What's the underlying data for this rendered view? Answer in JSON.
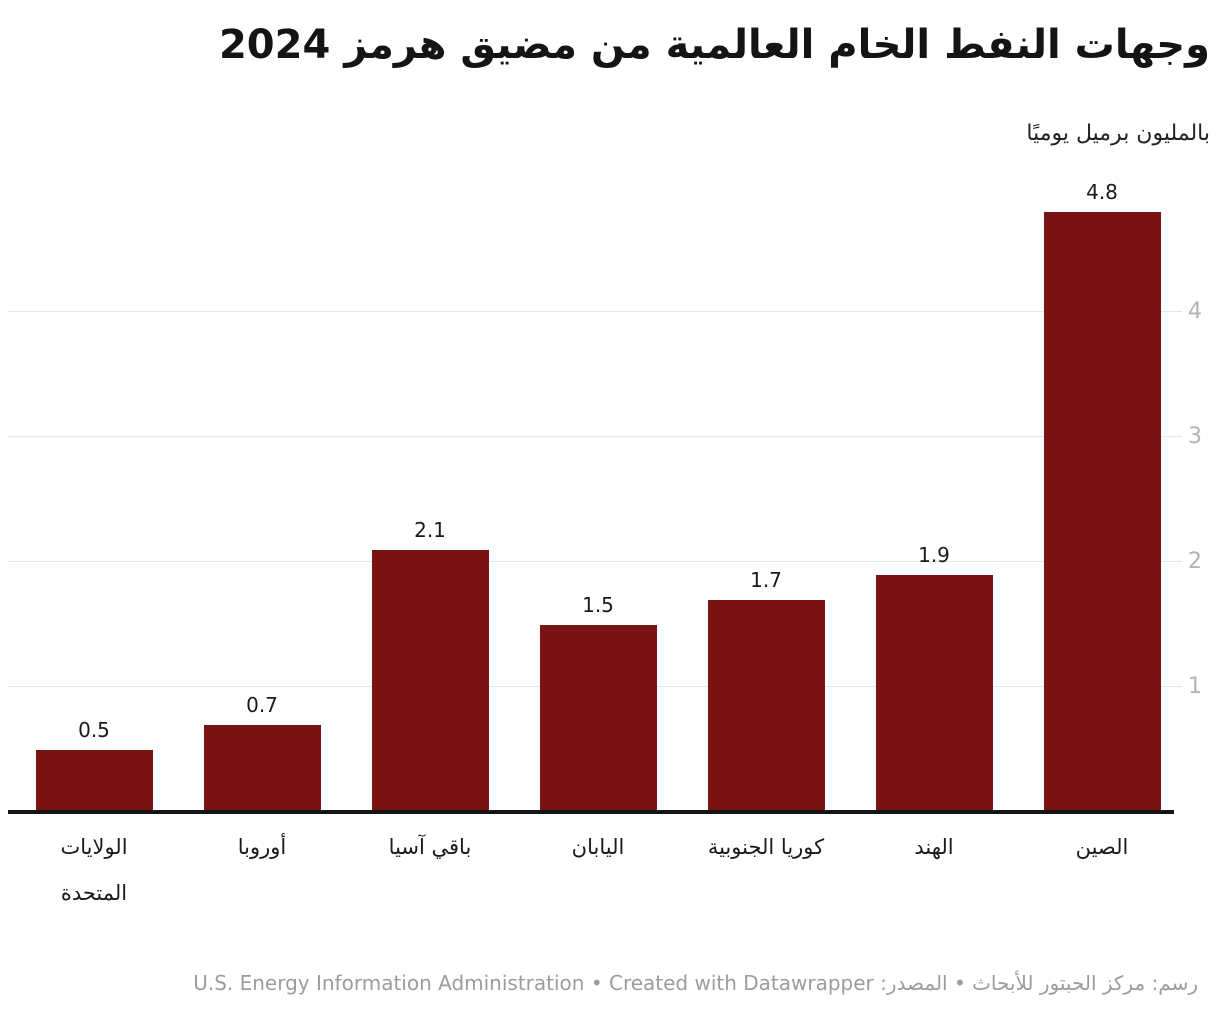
{
  "header": {
    "title": "وجهات النفط الخام العالمية من مضيق هرمز 2024",
    "subtitle": "بالمليون برميل يوميًا"
  },
  "footer": {
    "text": "رسم: مركز الحبتور للأبحاث • المصدر: U.S. Energy Information Administration • Created with Datawrapper"
  },
  "chart_data": {
    "type": "bar",
    "title": "وجهات النفط الخام العالمية من مضيق هرمز 2024",
    "subtitle": "بالمليون برميل يوميًا",
    "categories": [
      "الولايات\nالمتحدة",
      "أوروبا",
      "باقي آسيا",
      "اليابان",
      "كوريا الجنوبية",
      "الهند",
      "الصين"
    ],
    "values": [
      0.5,
      0.7,
      2.1,
      1.5,
      1.7,
      1.9,
      4.8
    ],
    "value_labels": [
      "0.5",
      "0.7",
      "2.1",
      "1.5",
      "1.7",
      "1.9",
      "4.8"
    ],
    "yticks": [
      1,
      2,
      3,
      4
    ],
    "ylim": [
      0,
      4.8
    ],
    "grid": true,
    "legend": "none",
    "axis_side": "right",
    "colors": {
      "bar": "#7a1414",
      "grid": "#e6e6e6",
      "axis_line": "#161616",
      "tick_label": "#b3b3b3",
      "value_label": "#1a1a1a",
      "category_label": "#1a1a1a"
    }
  }
}
